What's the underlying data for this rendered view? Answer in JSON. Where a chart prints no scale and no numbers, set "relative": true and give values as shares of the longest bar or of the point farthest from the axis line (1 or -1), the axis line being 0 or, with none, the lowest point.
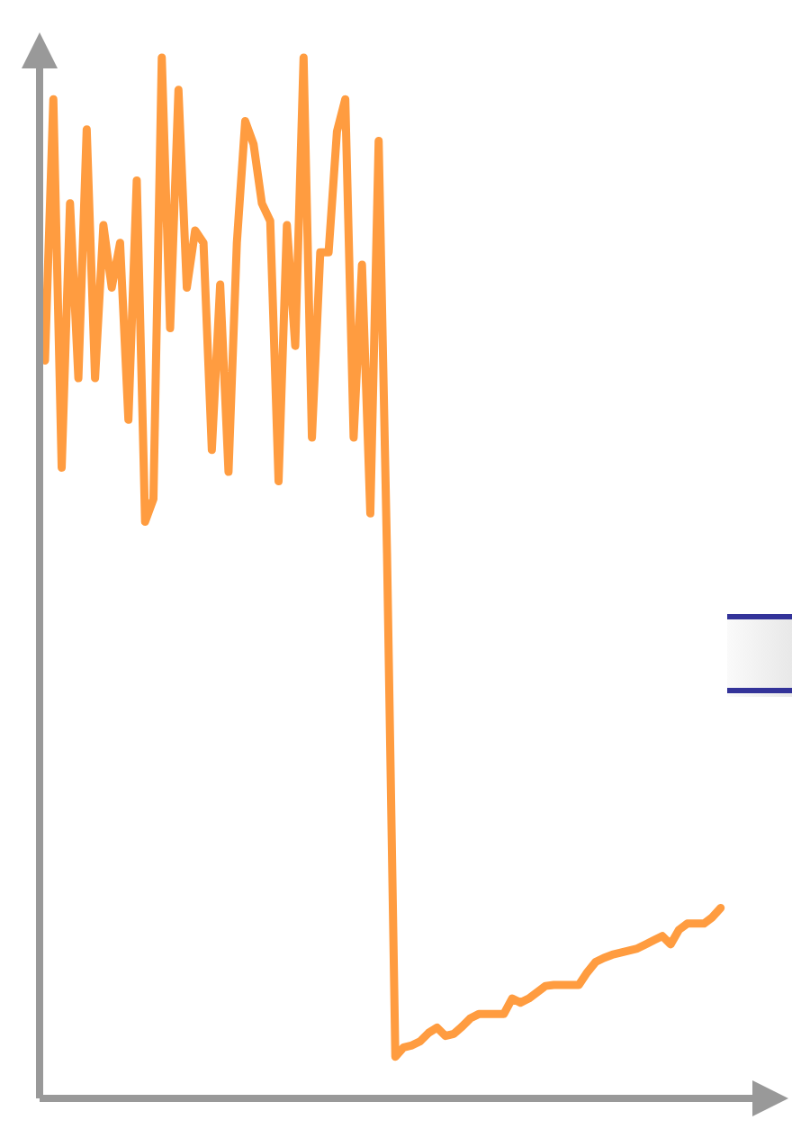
{
  "chart_data": {
    "type": "line",
    "relative": true,
    "categories": [
      null,
      null,
      null,
      null,
      null,
      null,
      null,
      null,
      null,
      null,
      null,
      null,
      null,
      null,
      null,
      null,
      null,
      null,
      null,
      null,
      null,
      null,
      null,
      null,
      null,
      null,
      null,
      null,
      null,
      null,
      null,
      null,
      null,
      null,
      null,
      null,
      null,
      null,
      null,
      null,
      null,
      null,
      null,
      null,
      null,
      null,
      null,
      null,
      null,
      null,
      null,
      null,
      null,
      null,
      null,
      null,
      null,
      null,
      null,
      null,
      null,
      null,
      null,
      null,
      null,
      null,
      null,
      null,
      null,
      null,
      null,
      null,
      null,
      null,
      null,
      null,
      null,
      null,
      null,
      null,
      null,
      null
    ],
    "series": [
      {
        "color": "#ff9c40",
        "values": [
          0.709,
          0.96,
          0.606,
          0.86,
          0.692,
          0.931,
          0.692,
          0.839,
          0.779,
          0.822,
          0.652,
          0.882,
          0.554,
          0.576,
          1,
          0.74,
          0.969,
          0.779,
          0.834,
          0.822,
          0.623,
          0.782,
          0.602,
          0.822,
          0.939,
          0.917,
          0.86,
          0.843,
          0.593,
          0.839,
          0.723,
          1,
          0.635,
          0.813,
          0.813,
          0.929,
          0.96,
          0.635,
          0.801,
          0.562,
          0.92,
          0.524,
          0.04,
          0.049,
          0.051,
          0.055,
          0.063,
          0.068,
          0.06,
          0.062,
          0.069,
          0.077,
          0.081,
          0.081,
          0.081,
          0.081,
          0.096,
          0.092,
          0.096,
          0.102,
          0.108,
          0.109,
          0.109,
          0.109,
          0.109,
          0.121,
          0.131,
          0.135,
          0.138,
          0.14,
          0.142,
          0.144,
          0.148,
          0.152,
          0.156,
          0.148,
          0.162,
          0.168,
          0.168,
          0.168,
          0.174,
          0.183
        ]
      }
    ]
  }
}
